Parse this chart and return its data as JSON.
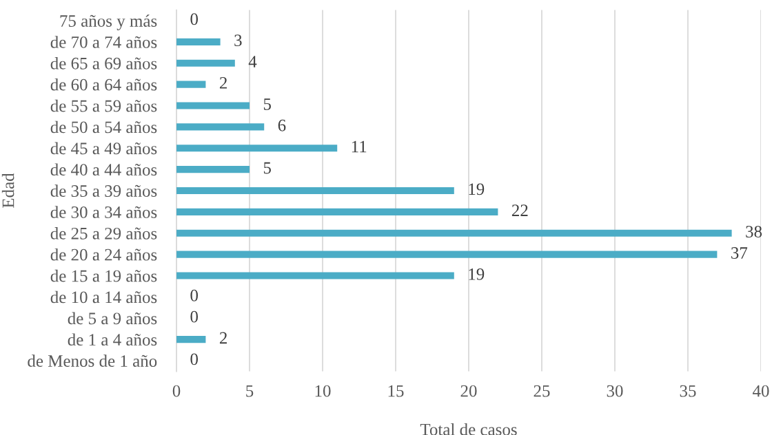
{
  "chart_data": {
    "type": "bar",
    "orientation": "horizontal",
    "categories": [
      "75 años y más",
      "de 70 a 74 años",
      "de 65 a 69 años",
      "de 60 a 64 años",
      "de 55 a 59 años",
      "de 50 a 54 años",
      "de 45 a 49 años",
      "de 40 a 44 años",
      "de 35 a 39 años",
      "de 30 a 34 años",
      "de 25 a 29 años",
      "de 20 a 24 años",
      "de 15 a 19 años",
      "de 10 a 14 años",
      "de 5 a 9 años",
      "de 1 a 4 años",
      "de Menos de 1 año"
    ],
    "values": [
      0,
      3,
      4,
      2,
      5,
      6,
      11,
      5,
      19,
      22,
      38,
      37,
      19,
      0,
      0,
      2,
      0
    ],
    "color": "#4bacc6",
    "xlabel": "Total de casos",
    "ylabel": "Edad",
    "xlim": [
      0,
      40
    ],
    "xticks": [
      0,
      5,
      10,
      15,
      20,
      25,
      30,
      35,
      40
    ],
    "grid": "x",
    "data_labels": true
  }
}
